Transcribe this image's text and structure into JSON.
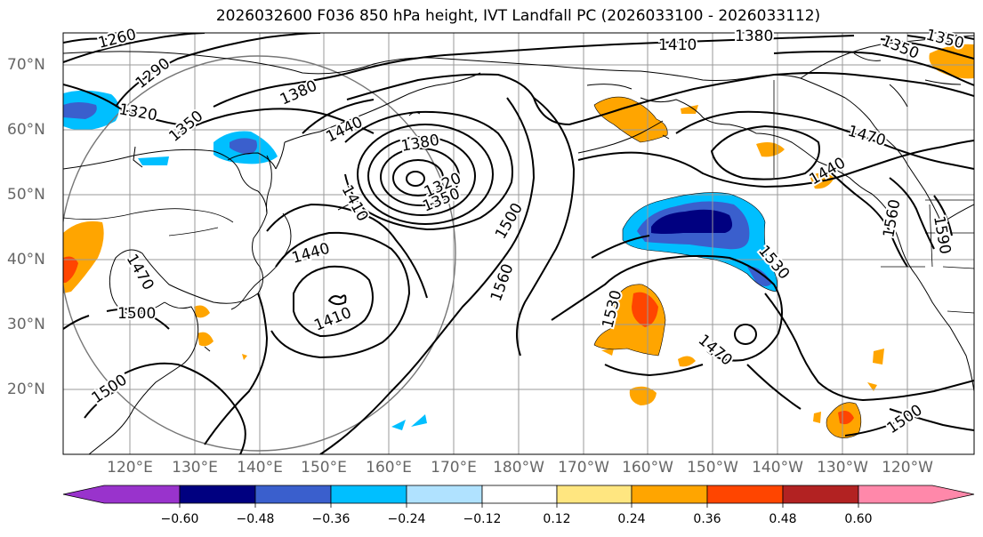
{
  "title": "2026032600 F036 850 hPa height, IVT Landfall PC (2026033100 - 2026033112)",
  "longitude_labels": [
    "120°E",
    "130°E",
    "140°E",
    "150°E",
    "160°E",
    "170°E",
    "180°W",
    "170°W",
    "160°W",
    "150°W",
    "140°W",
    "130°W",
    "120°W"
  ],
  "latitude_labels": [
    "70°N",
    "60°N",
    "50°N",
    "40°N",
    "30°N",
    "20°N"
  ],
  "contour_labels": [
    "1260",
    "1290",
    "1320",
    "1350",
    "1380",
    "1410",
    "1440",
    "1380",
    "1350",
    "1320",
    "1410",
    "1440",
    "1410",
    "1470",
    "1500",
    "1500",
    "1500",
    "1560",
    "1530",
    "1470",
    "1530",
    "1500",
    "1560",
    "1410",
    "1380",
    "1350",
    "1470",
    "1440",
    "1560",
    "1590"
  ],
  "colorbar": {
    "tick_labels": [
      "−0.60",
      "−0.48",
      "−0.36",
      "−0.24",
      "−0.12",
      "0.12",
      "0.24",
      "0.36",
      "0.48",
      "0.60"
    ],
    "colors": [
      "#9933cc",
      "#000080",
      "#3a5fcd",
      "#00bfff",
      "#b0e2ff",
      "#ffffff",
      "#ffe680",
      "#ffa500",
      "#ff4500",
      "#b22222",
      "#ff88aa"
    ]
  }
}
